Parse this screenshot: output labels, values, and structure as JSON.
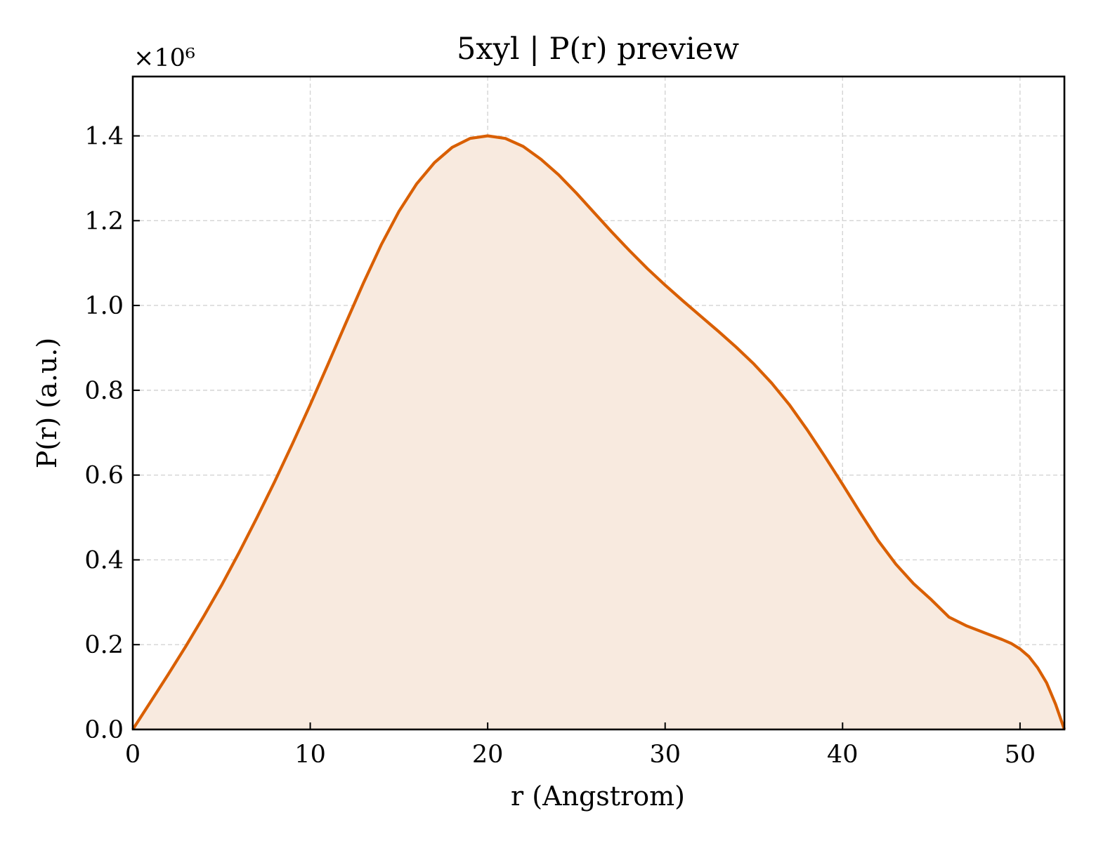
{
  "chart_data": {
    "type": "area",
    "title": "5xyl | P(r) preview",
    "xlabel": "r (Angstrom)",
    "ylabel": "P(r) (a.u.)",
    "y_multiplier_label": "×10⁶",
    "y_scale": 1000000,
    "xlim": [
      0,
      52.5
    ],
    "ylim": [
      0,
      1.54
    ],
    "x_ticks": [
      0,
      10,
      20,
      30,
      40,
      50
    ],
    "x_tick_labels": [
      "0",
      "10",
      "20",
      "30",
      "40",
      "50"
    ],
    "y_ticks": [
      0,
      0.2,
      0.4,
      0.6,
      0.8,
      1.0,
      1.2,
      1.4
    ],
    "y_tick_labels": [
      "0.0",
      "0.2",
      "0.4",
      "0.6",
      "0.8",
      "1.0",
      "1.2",
      "1.4"
    ],
    "grid": true,
    "colors": {
      "line": "#d95f02",
      "fill": "#f8eadf"
    },
    "series": [
      {
        "x": [
          0,
          1,
          2,
          3,
          4,
          5,
          6,
          7,
          8,
          9,
          10,
          11,
          12,
          13,
          14,
          15,
          16,
          17,
          18,
          19,
          20,
          21,
          22,
          23,
          24,
          25,
          26,
          27,
          28,
          29,
          30,
          31,
          32,
          33,
          34,
          35,
          36,
          37,
          38,
          39,
          40,
          41,
          42,
          43,
          44,
          45,
          46,
          47,
          48,
          49,
          49.5,
          50,
          50.5,
          51,
          51.5,
          52,
          52.5
        ],
        "values": [
          0,
          0.065,
          0.13,
          0.197,
          0.267,
          0.34,
          0.418,
          0.5,
          0.585,
          0.674,
          0.766,
          0.861,
          0.958,
          1.053,
          1.143,
          1.222,
          1.287,
          1.337,
          1.373,
          1.394,
          1.4,
          1.394,
          1.375,
          1.345,
          1.308,
          1.265,
          1.219,
          1.173,
          1.129,
          1.087,
          1.048,
          1.011,
          0.975,
          0.939,
          0.902,
          0.862,
          0.817,
          0.766,
          0.707,
          0.644,
          0.578,
          0.511,
          0.446,
          0.39,
          0.344,
          0.306,
          0.265,
          0.244,
          0.228,
          0.212,
          0.203,
          0.19,
          0.172,
          0.145,
          0.11,
          0.06,
          0
        ]
      }
    ]
  }
}
